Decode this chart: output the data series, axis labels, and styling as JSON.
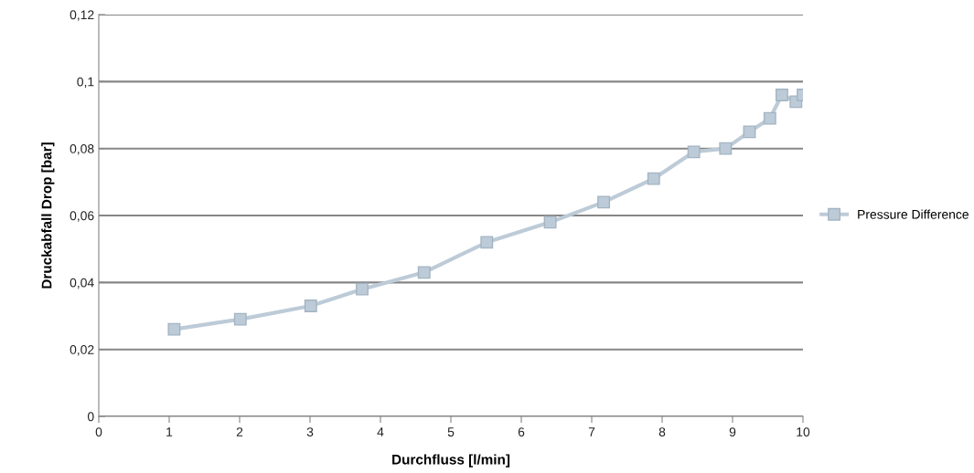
{
  "chart_data": {
    "type": "line",
    "xlabel": "Durchfluss [l/min]",
    "ylabel": "Druckabfall Drop [bar]",
    "x": [
      1.07,
      2.01,
      3.01,
      3.74,
      4.62,
      5.51,
      6.41,
      7.17,
      7.88,
      8.45,
      8.9,
      9.24,
      9.53,
      9.7,
      9.9,
      10.0
    ],
    "series": [
      {
        "name": "Pressure Difference",
        "color": "#bccbd7",
        "values": [
          0.026,
          0.029,
          0.033,
          0.038,
          0.043,
          0.052,
          0.058,
          0.064,
          0.071,
          0.079,
          0.08,
          0.085,
          0.089,
          0.096,
          0.094,
          0.096
        ]
      }
    ],
    "xlim": [
      0,
      10
    ],
    "xticks": [
      0,
      1,
      2,
      3,
      4,
      5,
      6,
      7,
      8,
      9,
      10
    ],
    "ylim": [
      0,
      0.12
    ],
    "yticks": [
      0,
      {
        "value": 0.02,
        "label": "0,02"
      },
      {
        "value": 0.04,
        "label": "0,04"
      },
      {
        "value": 0.06,
        "label": "0,06"
      },
      {
        "value": 0.08,
        "label": "0,08"
      },
      {
        "value": 0.1,
        "label": "0,1"
      },
      {
        "value": 0.12,
        "label": "0,12"
      }
    ],
    "grid": "y",
    "legend": "right",
    "marker": "square",
    "line_style": "solid"
  }
}
